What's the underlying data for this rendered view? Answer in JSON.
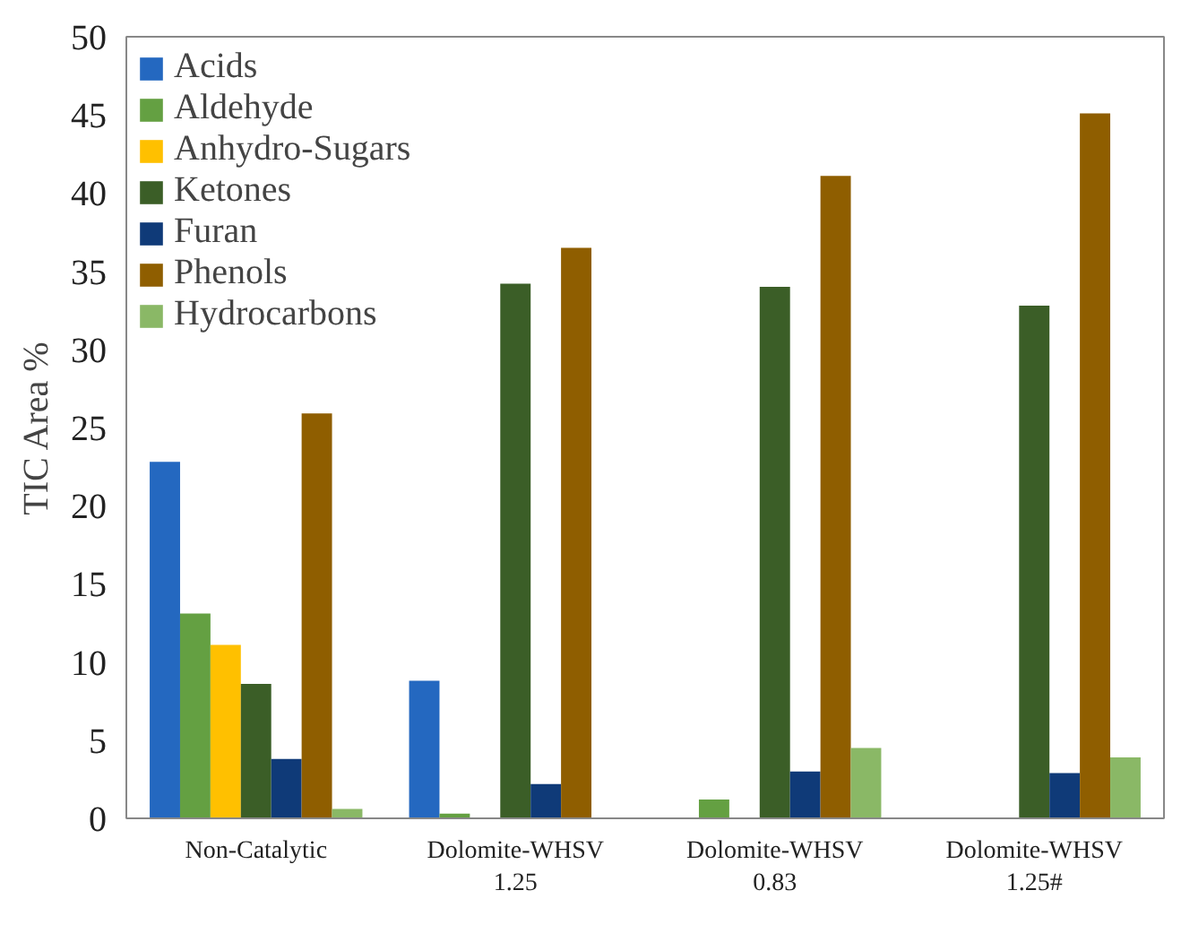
{
  "chart_data": {
    "type": "bar",
    "ylabel": "TIC Area %",
    "categories": [
      "Non-Catalytic",
      "Dolomite-WHSV\n1.25",
      "Dolomite-WHSV\n0.83",
      "Dolomite-WHSV\n1.25#"
    ],
    "ylim": [
      0,
      50
    ],
    "yticks": [
      0,
      5,
      10,
      15,
      20,
      25,
      30,
      35,
      40,
      45,
      50
    ],
    "grid": false,
    "legend": "top left",
    "series": [
      {
        "name": "Acids",
        "color": "#2468c0",
        "values": [
          22.8,
          8.8,
          0,
          0
        ]
      },
      {
        "name": "Aldehyde",
        "color": "#64a042",
        "values": [
          13.1,
          0.3,
          1.2,
          0
        ]
      },
      {
        "name": "Anhydro-Sugars",
        "color": "#ffc000",
        "values": [
          11.1,
          0,
          0,
          0
        ]
      },
      {
        "name": "Ketones",
        "color": "#3b5e27",
        "values": [
          8.6,
          34.2,
          34.0,
          32.8
        ]
      },
      {
        "name": "Furan",
        "color": "#0f3a78",
        "values": [
          3.8,
          2.2,
          3.0,
          2.9
        ]
      },
      {
        "name": "Phenols",
        "color": "#8f5e00",
        "values": [
          25.9,
          36.5,
          41.1,
          45.1
        ]
      },
      {
        "name": "Hydrocarbons",
        "color": "#8ab866",
        "values": [
          0.6,
          0,
          4.5,
          3.9
        ]
      }
    ]
  }
}
